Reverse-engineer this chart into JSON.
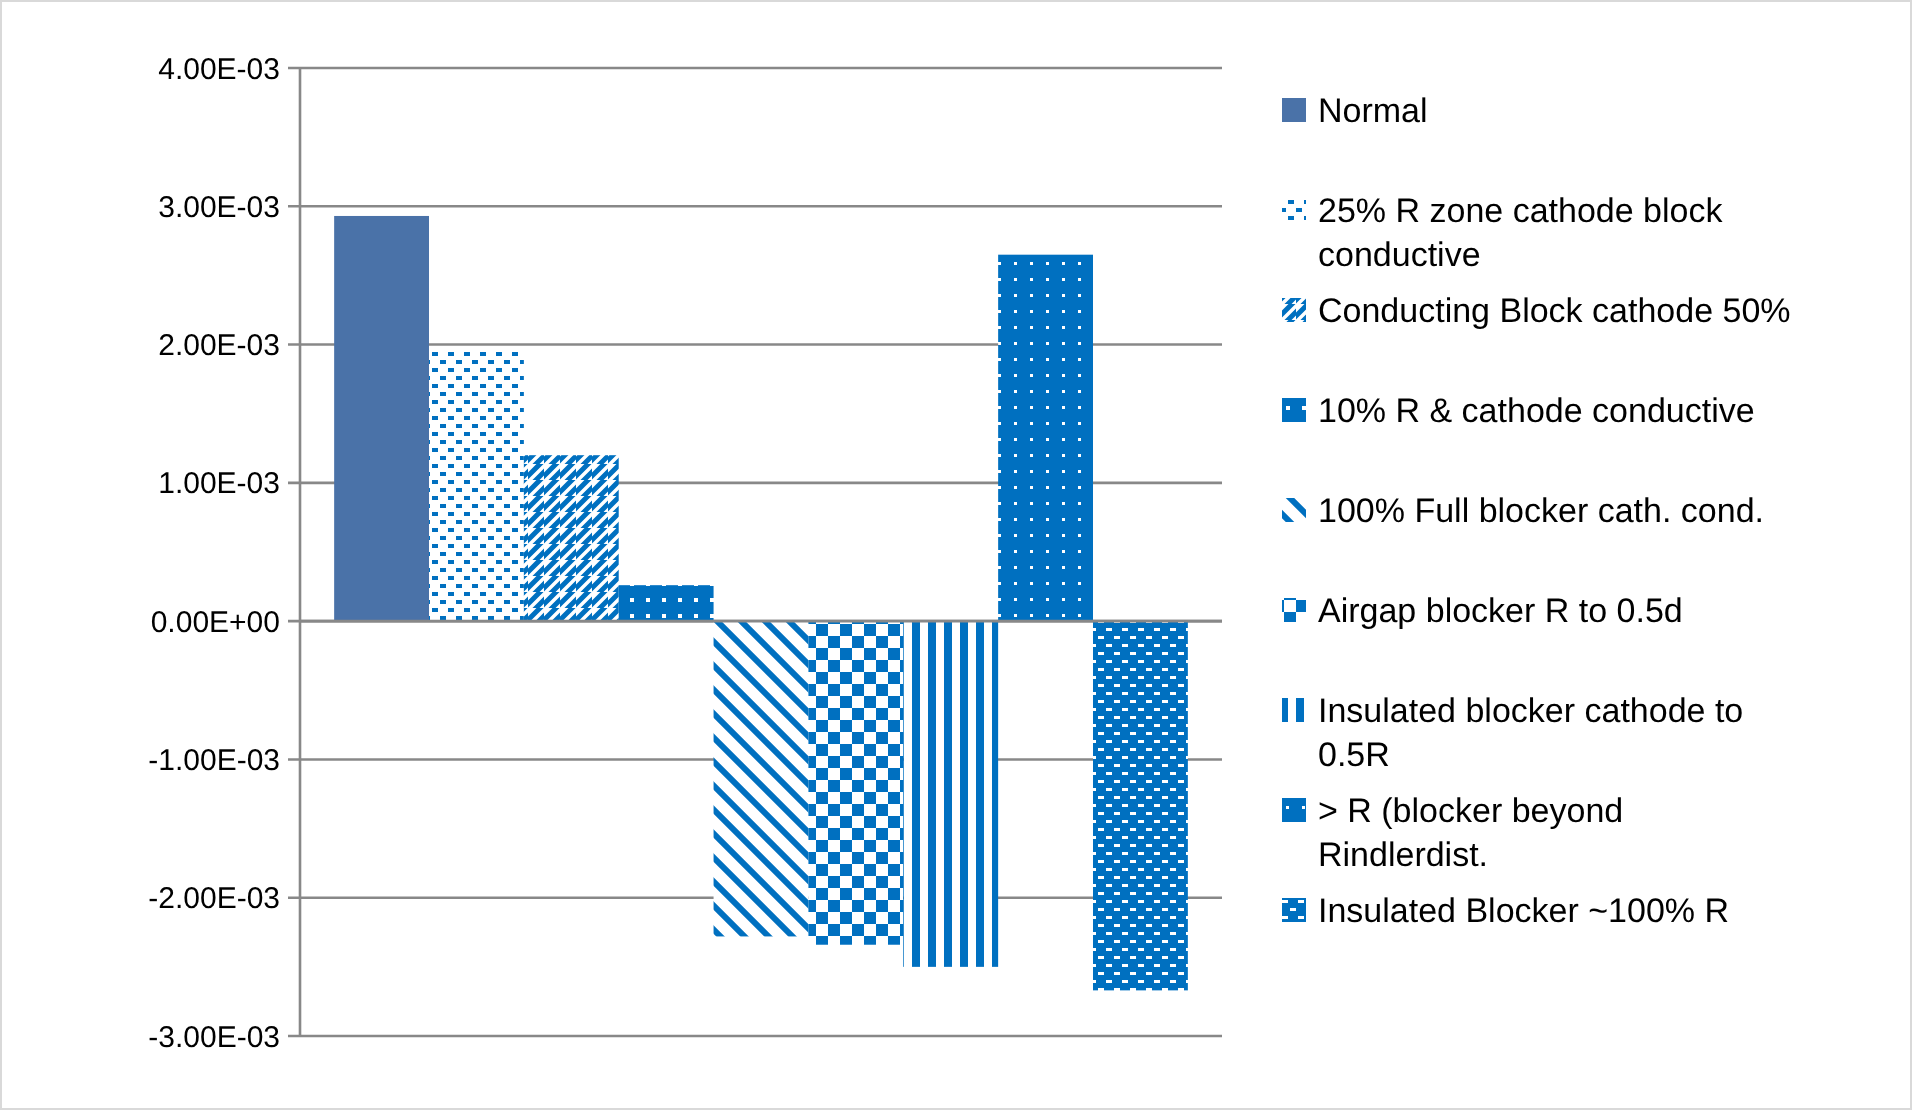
{
  "chart_data": {
    "type": "bar",
    "categories": [
      null
    ],
    "series": [
      {
        "name": "Normal",
        "color": "#4a72a8",
        "values": [
          0.00293
        ]
      },
      {
        "name": "25% R zone cathode block conductive",
        "color": "#0070c0",
        "values": [
          0.00195
        ]
      },
      {
        "name": "Conducting Block cathode 50%",
        "color": "#0070c0",
        "values": [
          0.0012
        ]
      },
      {
        "name": "10% R & cathode conductive",
        "color": "#0070c0",
        "values": [
          0.00026
        ]
      },
      {
        "name": "100% Full blocker cath. cond.",
        "color": "#0070c0",
        "values": [
          -0.00228
        ]
      },
      {
        "name": "Airgap blocker R to 0.5d",
        "color": "#0070c0",
        "values": [
          -0.00234
        ]
      },
      {
        "name": "Insulated blocker cathode to 0.5R",
        "color": "#0070c0",
        "values": [
          -0.0025
        ]
      },
      {
        "name": "> R (blocker beyond Rindlerdist.",
        "color": "#0070c0",
        "values": [
          0.00265
        ]
      },
      {
        "name": "Insulated Blocker ~100% R",
        "color": "#0070c0",
        "values": [
          -0.00267
        ]
      }
    ],
    "ylim": [
      -0.003,
      0.004
    ],
    "yticks": [
      {
        "value": -0.003,
        "label": "-3.00E-03"
      },
      {
        "value": -0.002,
        "label": "-2.00E-03"
      },
      {
        "value": -0.001,
        "label": "-1.00E-03"
      },
      {
        "value": 0,
        "label": "0.00E+00"
      },
      {
        "value": 0.001,
        "label": "1.00E-03"
      },
      {
        "value": 0.002,
        "label": "2.00E-03"
      },
      {
        "value": 0.003,
        "label": "3.00E-03"
      },
      {
        "value": 0.004,
        "label": "4.00E-03"
      }
    ],
    "grid": "y",
    "legend": "right"
  }
}
